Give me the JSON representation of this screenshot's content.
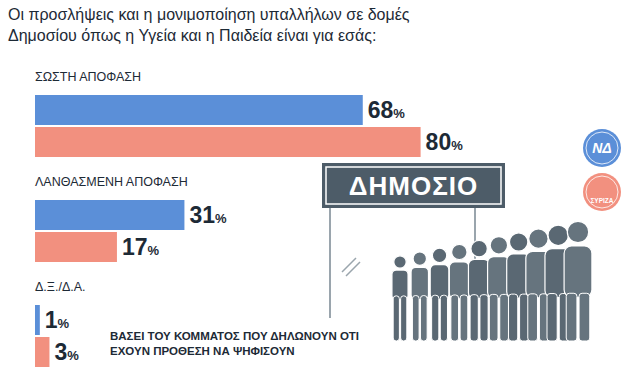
{
  "chart_data": {
    "type": "bar",
    "orientation": "horizontal",
    "title": "Οι προσλήψεις και η μονιμοποίηση υπαλλήλων σε δομές Δημοσίου όπως η Υγεία και η Παιδεία είναι για εσάς:",
    "categories": [
      "ΣΩΣΤΗ ΑΠΟΦΑΣΗ",
      "ΛΑΝΘΑΣΜΕΝΗ ΑΠΟΦΑΣΗ",
      "Δ.Ξ./Δ.Α."
    ],
    "series": [
      {
        "name": "ΝΔ",
        "color": "#5b8fd8",
        "values": [
          68,
          31,
          1
        ],
        "value_labels": [
          "68%",
          "31%",
          "1%"
        ]
      },
      {
        "name": "ΣΥΡΙΖΑ",
        "color": "#f2907f",
        "values": [
          80,
          17,
          3
        ],
        "value_labels": [
          "80%",
          "17%",
          "3%"
        ]
      }
    ],
    "xlim": [
      0,
      100
    ],
    "data_labels": true,
    "tick_labels": false,
    "grid": false,
    "legend": "right",
    "annotations": [
      "ΒΑΣΕΙ ΤΟΥ ΚΟΜΜΑΤΟΣ ΠΟΥ ΔΗΛΩΝΟΥΝ ΟΤΙ ΕΧΟΥΝ ΠΡΟΘΕΣΗ ΝΑ ΨΗΦΙΣΟΥΝ",
      "ΔΗΜΟΣΙΟ"
    ]
  }
}
